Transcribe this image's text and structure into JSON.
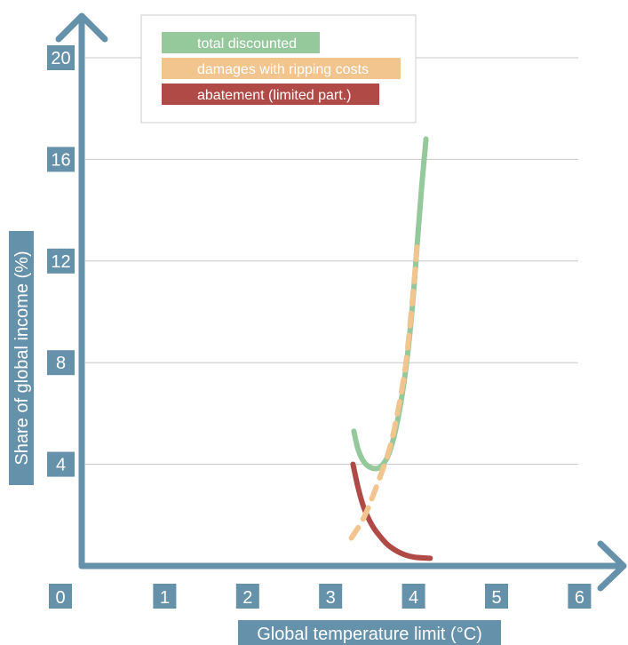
{
  "colors": {
    "axis": "#6691ab",
    "grid": "#c8c8c8",
    "legend_border": "#cccccc",
    "total_discounted": "#95c99c",
    "damages": "#f2c48e",
    "abatement": "#b04a46",
    "label_text": "#ffffff"
  },
  "chart_data": {
    "type": "line",
    "xlabel": "Global temperature limit (°C)",
    "ylabel": "Share of global income (%)",
    "xlim": [
      0,
      6
    ],
    "ylim": [
      0,
      20
    ],
    "x_ticks": [
      "0",
      "1",
      "2",
      "3",
      "4",
      "5",
      "6"
    ],
    "y_ticks": [
      "4",
      "8",
      "12",
      "16",
      "20"
    ],
    "grid": "horizontal",
    "legend_position": "top-left",
    "series": [
      {
        "name": "total discounted",
        "style": "solid",
        "color": "#95c99c",
        "points": [
          [
            3.28,
            5.3
          ],
          [
            3.33,
            4.6
          ],
          [
            3.4,
            4.1
          ],
          [
            3.5,
            3.85
          ],
          [
            3.6,
            3.9
          ],
          [
            3.7,
            4.4
          ],
          [
            3.8,
            5.6
          ],
          [
            3.9,
            7.6
          ],
          [
            3.98,
            10.0
          ],
          [
            4.04,
            12.5
          ],
          [
            4.1,
            15.0
          ],
          [
            4.15,
            16.8
          ]
        ]
      },
      {
        "name": "damages with ripping costs",
        "style": "dashed",
        "color": "#f2c48e",
        "points": [
          [
            3.25,
            1.1
          ],
          [
            3.4,
            1.9
          ],
          [
            3.55,
            3.1
          ],
          [
            3.7,
            4.5
          ],
          [
            3.8,
            5.9
          ],
          [
            3.9,
            7.8
          ],
          [
            3.96,
            9.6
          ],
          [
            4.01,
            11.3
          ],
          [
            4.05,
            12.9
          ]
        ]
      },
      {
        "name": "abatement (limited part.)",
        "style": "solid",
        "color": "#b04a46",
        "points": [
          [
            3.27,
            4.0
          ],
          [
            3.33,
            3.1
          ],
          [
            3.4,
            2.3
          ],
          [
            3.5,
            1.6
          ],
          [
            3.6,
            1.15
          ],
          [
            3.7,
            0.8
          ],
          [
            3.85,
            0.5
          ],
          [
            4.0,
            0.35
          ],
          [
            4.2,
            0.3
          ]
        ]
      }
    ]
  }
}
